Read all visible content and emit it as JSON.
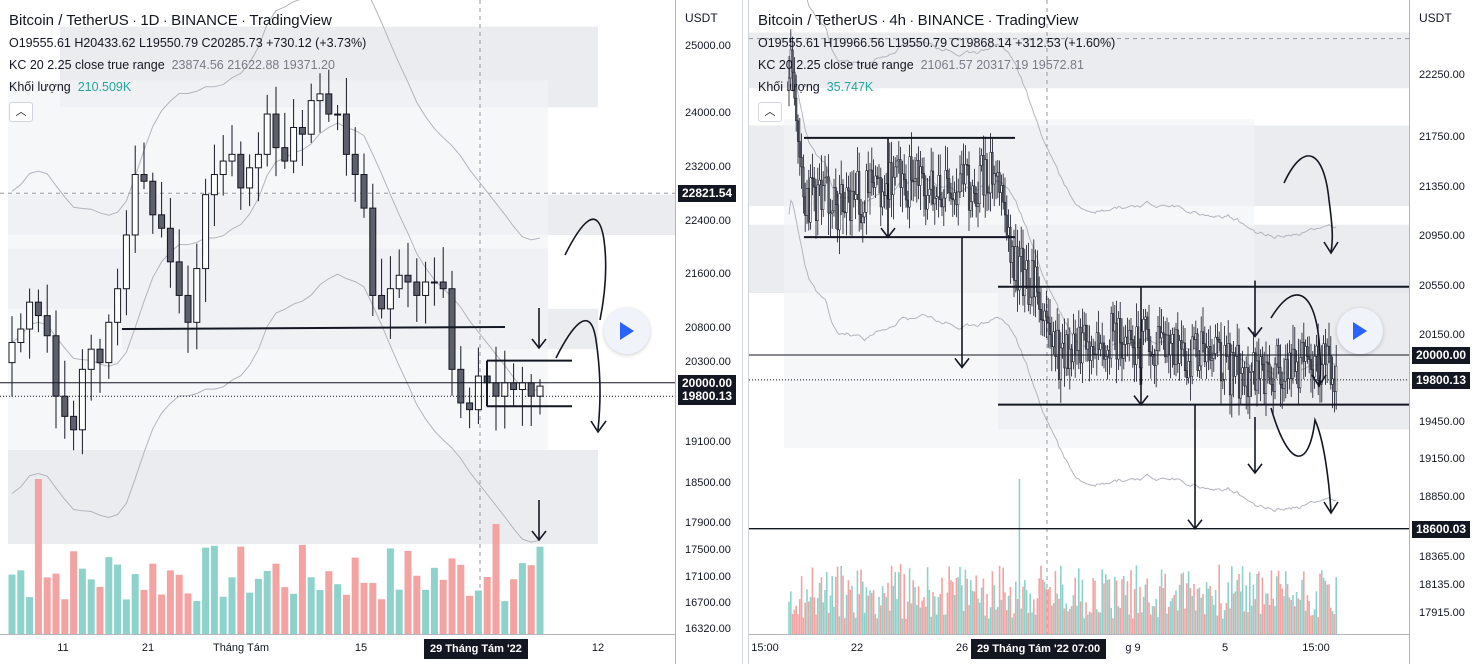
{
  "left": {
    "title": "Bitcoin / TetherUS",
    "timeframe": "1D",
    "exchange": "BINANCE",
    "platform": "TradingView",
    "ohlc": "O19555.61 H20433.62 L19550.79 C20285.73 +730.12 (+3.73%)",
    "kc_label": "KC 20 2.25 close true range",
    "kc_values": "23874.56  21622.88  19371.20",
    "volume_label": "Khối lượng",
    "volume_value": "210.509K",
    "axis_unit": "USDT",
    "price_ticks": [
      "25000.00",
      "24000.00",
      "23200.00",
      "22400.00",
      "21600.00",
      "20800.00",
      "20300.00",
      "19100.00",
      "18500.00",
      "17900.00",
      "17500.00",
      "17100.00",
      "16700.00",
      "16320.00"
    ],
    "badges": [
      {
        "price": "22821.54",
        "color": "#131722"
      },
      {
        "price": "20000.00",
        "color": "#131722"
      },
      {
        "price": "19800.13",
        "color": "#131722"
      }
    ],
    "x_labels": [
      "11",
      "21",
      "Tháng Tám",
      "15",
      "12"
    ],
    "x_highlight": "29 Tháng Tám '22"
  },
  "right": {
    "title": "Bitcoin / TetherUS",
    "timeframe": "4h",
    "exchange": "BINANCE",
    "platform": "TradingView",
    "ohlc": "O19555.61 H19966.56 L19550.79 C19868.14 +312.53 (+1.60%)",
    "kc_label": "KC 20 2.25 close true range",
    "kc_values": "21061.57  20317.19  19572.81",
    "volume_label": "Khối lượng",
    "volume_value": "35.747K",
    "axis_unit": "USDT",
    "price_ticks": [
      "22250.00",
      "21750.00",
      "21350.00",
      "20950.00",
      "20550.00",
      "20150.00",
      "19450.00",
      "19150.00",
      "18850.00",
      "18365.00",
      "18135.00",
      "17915.00"
    ],
    "badges": [
      {
        "price": "20000.00",
        "color": "#131722"
      },
      {
        "price": "19800.13",
        "color": "#131722"
      },
      {
        "price": "18600.03",
        "color": "#131722"
      }
    ],
    "x_labels": [
      "15:00",
      "22",
      "26",
      "g 9",
      "5",
      "15:00"
    ],
    "x_highlight": "29 Tháng Tám '22   07:00"
  },
  "colors": {
    "up": "#ffffff",
    "down": "#5d606b",
    "vol_up": "#8ed3cb",
    "vol_down": "#f4a3a3",
    "band": "#eceef3",
    "zone": "#e3e5ea"
  },
  "chart_data": [
    {
      "type": "candlestick",
      "title": "Bitcoin / TetherUS 1D BINANCE",
      "ylabel": "USDT",
      "ylim": [
        16320,
        25400
      ],
      "x_ticks": [
        "11",
        "21",
        "Tháng Tám",
        "15",
        "29 Tháng Tám '22",
        "12"
      ],
      "horizontal_levels": [
        22821.54,
        20000.0,
        19800.13
      ],
      "close_series": [
        20600,
        20800,
        21200,
        21000,
        20700,
        19800,
        19500,
        19300,
        20200,
        20500,
        20300,
        20900,
        21400,
        22200,
        23100,
        23000,
        22500,
        22300,
        21800,
        21300,
        20900,
        21700,
        22800,
        23100,
        23300,
        23400,
        22900,
        23200,
        23400,
        24000,
        23500,
        23300,
        23800,
        23700,
        24200,
        24300,
        24000,
        24000,
        23400,
        23100,
        22600,
        21300,
        21100,
        21400,
        21600,
        21500,
        21300,
        21500,
        21500,
        21400,
        20200,
        19700,
        19600,
        20100,
        20000,
        19800,
        20000,
        19900,
        20000,
        19800,
        19950
      ]
    },
    {
      "type": "candlestick",
      "title": "Bitcoin / TetherUS 4h BINANCE",
      "ylabel": "USDT",
      "ylim": [
        17800,
        22700
      ],
      "x_ticks": [
        "15:00",
        "22",
        "26",
        "29 Tháng Tám '22 07:00",
        "g 9",
        "5",
        "15:00"
      ],
      "horizontal_levels": [
        20000.0,
        19800.13,
        18600.03
      ],
      "ranges": [
        {
          "top": 21750,
          "bottom": 20950
        },
        {
          "top": 20550,
          "bottom": 19600
        }
      ]
    }
  ]
}
